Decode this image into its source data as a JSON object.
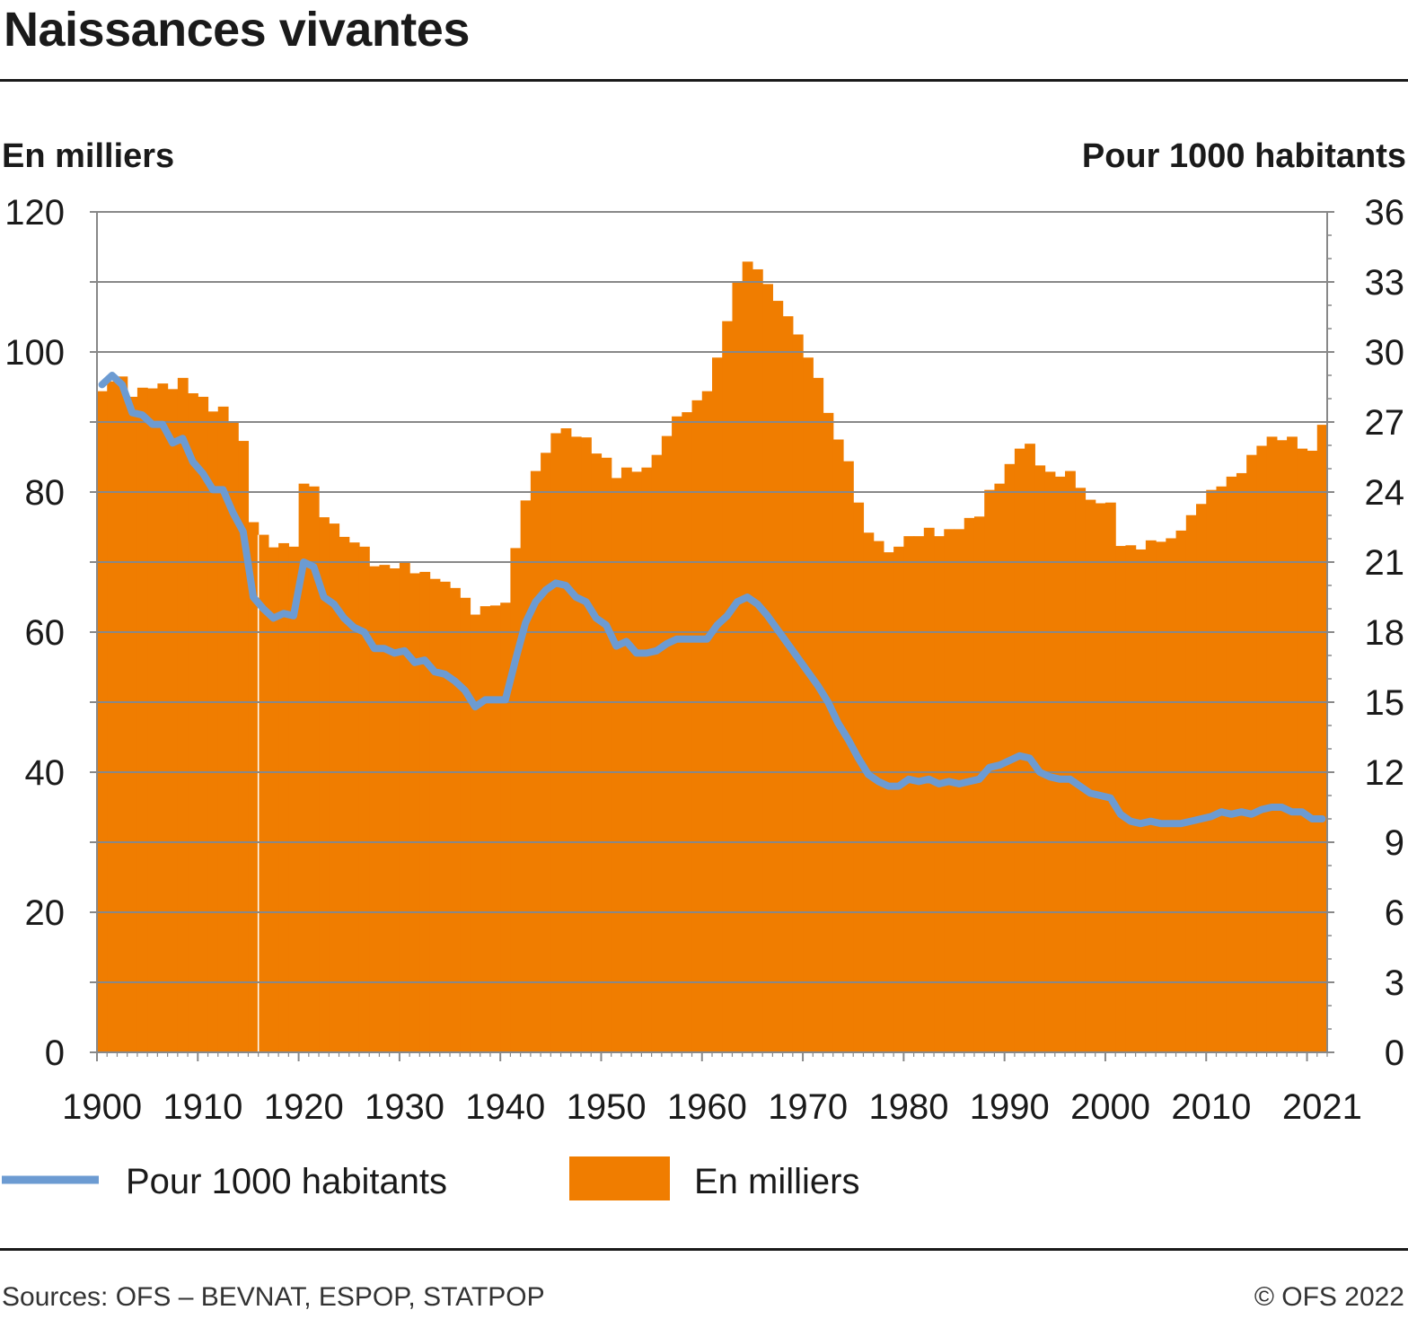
{
  "title": "Naissances vivantes",
  "left_axis_title": "En milliers",
  "right_axis_title": "Pour 1000 habitants",
  "legend": {
    "line_label": "Pour 1000 habitants",
    "area_label": "En milliers"
  },
  "footer": {
    "sources": "Sources: OFS – BEVNAT, ESPOP, STATPOP",
    "copyright": "© OFS 2022"
  },
  "colors": {
    "area": "#f07d00",
    "line": "#6c9bd2",
    "grid": "#888888",
    "text": "#1a1a1a"
  },
  "chart_data": {
    "type": "bar",
    "x_ticks": [
      "1900",
      "1910",
      "1920",
      "1930",
      "1940",
      "1950",
      "1960",
      "1970",
      "1980",
      "1990",
      "2000",
      "2010",
      "2021"
    ],
    "left_ticks": [
      "0",
      "20",
      "40",
      "60",
      "80",
      "100",
      "120"
    ],
    "right_ticks": [
      "0",
      "3",
      "6",
      "9",
      "12",
      "15",
      "18",
      "21",
      "24",
      "27",
      "30",
      "33",
      "36"
    ],
    "ylim_left": [
      0,
      120
    ],
    "ylim_right": [
      0,
      36
    ],
    "x_range": [
      1900,
      2021
    ],
    "grid": true,
    "legend_position": "bottom",
    "series": [
      {
        "name": "En milliers",
        "type": "bar",
        "axis": "left",
        "x": [
          1900,
          1901,
          1902,
          1903,
          1904,
          1905,
          1906,
          1907,
          1908,
          1909,
          1910,
          1911,
          1912,
          1913,
          1914,
          1915,
          1916,
          1917,
          1918,
          1919,
          1920,
          1921,
          1922,
          1923,
          1924,
          1925,
          1926,
          1927,
          1928,
          1929,
          1930,
          1931,
          1932,
          1933,
          1934,
          1935,
          1936,
          1937,
          1938,
          1939,
          1940,
          1941,
          1942,
          1943,
          1944,
          1945,
          1946,
          1947,
          1948,
          1949,
          1950,
          1951,
          1952,
          1953,
          1954,
          1955,
          1956,
          1957,
          1958,
          1959,
          1960,
          1961,
          1962,
          1963,
          1964,
          1965,
          1966,
          1967,
          1968,
          1969,
          1970,
          1971,
          1972,
          1973,
          1974,
          1975,
          1976,
          1977,
          1978,
          1979,
          1980,
          1981,
          1982,
          1983,
          1984,
          1985,
          1986,
          1987,
          1988,
          1989,
          1990,
          1991,
          1992,
          1993,
          1994,
          1995,
          1996,
          1997,
          1998,
          1999,
          2000,
          2001,
          2002,
          2003,
          2004,
          2005,
          2006,
          2007,
          2008,
          2009,
          2010,
          2011,
          2012,
          2013,
          2014,
          2015,
          2016,
          2017,
          2018,
          2019,
          2020,
          2021
        ],
        "values": [
          94.4,
          95.8,
          96.5,
          93.6,
          94.9,
          94.8,
          95.5,
          94.7,
          96.3,
          94.1,
          93.6,
          91.5,
          92.2,
          89.9,
          87.3,
          75.7,
          73.9,
          72.1,
          72.7,
          72.2,
          81.2,
          80.8,
          76.4,
          75.5,
          73.6,
          72.8,
          72.2,
          69.4,
          69.6,
          69.1,
          70.0,
          68.4,
          68.6,
          67.6,
          67.2,
          66.3,
          64.9,
          62.5,
          63.7,
          63.8,
          64.2,
          72.0,
          78.8,
          83.0,
          85.6,
          88.4,
          89.1,
          87.9,
          87.8,
          85.5,
          84.9,
          82.0,
          83.5,
          82.9,
          83.5,
          85.3,
          88.0,
          90.8,
          91.4,
          93.1,
          94.4,
          99.2,
          104.4,
          110.1,
          112.9,
          111.8,
          109.7,
          107.3,
          105.1,
          102.5,
          99.2,
          96.3,
          91.3,
          87.5,
          84.4,
          78.5,
          74.2,
          73.0,
          71.4,
          72.2,
          73.7,
          73.7,
          74.9,
          73.7,
          74.7,
          74.7,
          76.3,
          76.5,
          80.3,
          81.2,
          84.0,
          86.2,
          86.9,
          83.8,
          82.9,
          82.2,
          83.0,
          80.6,
          78.9,
          78.4,
          78.5,
          72.3,
          72.4,
          71.8,
          73.1,
          72.9,
          73.4,
          74.5,
          76.7,
          78.3,
          80.3,
          80.8,
          82.2,
          82.7,
          85.3,
          86.6,
          87.9,
          87.4,
          87.9,
          86.2,
          85.9,
          89.6
        ]
      },
      {
        "name": "Pour 1000 habitants",
        "type": "line",
        "axis": "right",
        "x": [
          1900,
          1901,
          1902,
          1903,
          1904,
          1905,
          1906,
          1907,
          1908,
          1909,
          1910,
          1911,
          1912,
          1913,
          1914,
          1915,
          1916,
          1917,
          1918,
          1919,
          1920,
          1921,
          1922,
          1923,
          1924,
          1925,
          1926,
          1927,
          1928,
          1929,
          1930,
          1931,
          1932,
          1933,
          1934,
          1935,
          1936,
          1937,
          1938,
          1939,
          1940,
          1941,
          1942,
          1943,
          1944,
          1945,
          1946,
          1947,
          1948,
          1949,
          1950,
          1951,
          1952,
          1953,
          1954,
          1955,
          1956,
          1957,
          1958,
          1959,
          1960,
          1961,
          1962,
          1963,
          1964,
          1965,
          1966,
          1967,
          1968,
          1969,
          1970,
          1971,
          1972,
          1973,
          1974,
          1975,
          1976,
          1977,
          1978,
          1979,
          1980,
          1981,
          1982,
          1983,
          1984,
          1985,
          1986,
          1987,
          1988,
          1989,
          1990,
          1991,
          1992,
          1993,
          1994,
          1995,
          1996,
          1997,
          1998,
          1999,
          2000,
          2001,
          2002,
          2003,
          2004,
          2005,
          2006,
          2007,
          2008,
          2009,
          2010,
          2011,
          2012,
          2013,
          2014,
          2015,
          2016,
          2017,
          2018,
          2019,
          2020,
          2021
        ],
        "values": [
          28.6,
          29.0,
          28.6,
          27.4,
          27.3,
          26.9,
          26.9,
          26.1,
          26.3,
          25.3,
          24.8,
          24.1,
          24.1,
          23.1,
          22.3,
          19.5,
          19.0,
          18.6,
          18.8,
          18.7,
          21.0,
          20.8,
          19.5,
          19.2,
          18.6,
          18.2,
          18.0,
          17.3,
          17.3,
          17.1,
          17.2,
          16.7,
          16.8,
          16.3,
          16.2,
          15.9,
          15.5,
          14.8,
          15.1,
          15.1,
          15.1,
          16.8,
          18.4,
          19.3,
          19.8,
          20.1,
          20.0,
          19.5,
          19.3,
          18.6,
          18.3,
          17.4,
          17.6,
          17.1,
          17.1,
          17.2,
          17.5,
          17.7,
          17.7,
          17.7,
          17.7,
          18.3,
          18.7,
          19.3,
          19.5,
          19.2,
          18.7,
          18.1,
          17.5,
          16.9,
          16.3,
          15.7,
          15.0,
          14.1,
          13.4,
          12.6,
          11.9,
          11.6,
          11.4,
          11.4,
          11.7,
          11.6,
          11.7,
          11.5,
          11.6,
          11.5,
          11.6,
          11.7,
          12.2,
          12.3,
          12.5,
          12.7,
          12.6,
          12.0,
          11.8,
          11.7,
          11.7,
          11.4,
          11.1,
          11.0,
          10.9,
          10.2,
          9.9,
          9.8,
          9.9,
          9.8,
          9.8,
          9.8,
          9.9,
          10.0,
          10.1,
          10.3,
          10.2,
          10.3,
          10.2,
          10.4,
          10.5,
          10.5,
          10.3,
          10.3,
          10.0,
          10.0
        ]
      }
    ]
  }
}
